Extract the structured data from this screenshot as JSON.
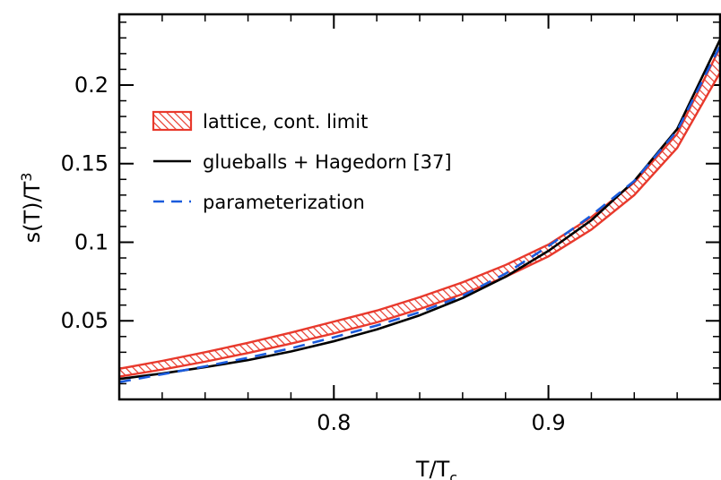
{
  "chart_data": {
    "type": "line",
    "xlabel_main": "T/T",
    "xlabel_sub": "c",
    "ylabel_main": "s(T)/T",
    "ylabel_sup": "3",
    "xlim": [
      0.7,
      0.98
    ],
    "ylim": [
      0.0,
      0.245
    ],
    "x_ticks": [
      {
        "value": 0.8,
        "label": "0.8"
      },
      {
        "value": 0.9,
        "label": "0.9"
      }
    ],
    "y_ticks": [
      {
        "value": 0.05,
        "label": "0.05"
      },
      {
        "value": 0.1,
        "label": "0.1"
      },
      {
        "value": 0.15,
        "label": "0.15"
      },
      {
        "value": 0.2,
        "label": "0.2"
      }
    ],
    "x_minor_step": 0.02,
    "y_minor_step": 0.01,
    "legend_position": "top-left",
    "series": [
      {
        "name": "lattice, cont. limit",
        "kind": "band",
        "color": "#e8392c",
        "x": [
          0.7,
          0.72,
          0.74,
          0.76,
          0.78,
          0.8,
          0.82,
          0.84,
          0.86,
          0.88,
          0.9,
          0.92,
          0.94,
          0.96,
          0.98
        ],
        "lower": [
          0.0145,
          0.019,
          0.024,
          0.0295,
          0.0355,
          0.042,
          0.049,
          0.0575,
          0.067,
          0.078,
          0.091,
          0.108,
          0.13,
          0.16,
          0.208
        ],
        "upper": [
          0.0195,
          0.0245,
          0.03,
          0.036,
          0.0425,
          0.0495,
          0.0565,
          0.065,
          0.0745,
          0.0855,
          0.0985,
          0.116,
          0.138,
          0.169,
          0.224
        ]
      },
      {
        "name": "glueballs + Hagedorn [37]",
        "kind": "line",
        "color": "#000000",
        "dash": "",
        "x": [
          0.7,
          0.72,
          0.74,
          0.76,
          0.78,
          0.8,
          0.82,
          0.84,
          0.86,
          0.88,
          0.9,
          0.92,
          0.94,
          0.96,
          0.98
        ],
        "values": [
          0.013,
          0.0165,
          0.0205,
          0.025,
          0.0305,
          0.037,
          0.0445,
          0.0535,
          0.0645,
          0.078,
          0.0945,
          0.114,
          0.139,
          0.172,
          0.229
        ]
      },
      {
        "name": "parameterization",
        "kind": "line",
        "color": "#1a5bdc",
        "dash": "13,9",
        "x": [
          0.7,
          0.72,
          0.74,
          0.76,
          0.78,
          0.8,
          0.82,
          0.84,
          0.86,
          0.88,
          0.9,
          0.92,
          0.94,
          0.96,
          0.98
        ],
        "values": [
          0.011,
          0.016,
          0.021,
          0.0265,
          0.0325,
          0.0395,
          0.047,
          0.0555,
          0.066,
          0.08,
          0.0975,
          0.117,
          0.139,
          0.171,
          0.225
        ]
      }
    ]
  }
}
